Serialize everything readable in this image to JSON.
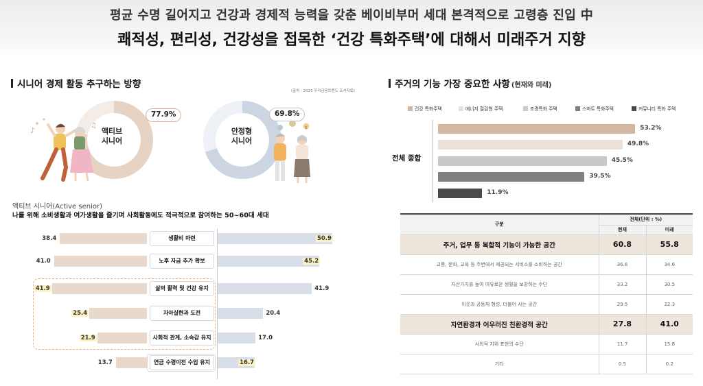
{
  "header": {
    "line1": "평균 수명 길어지고 건강과 경제적 능력을 갖춘 베이비부머 세대 본격적으로 고령층 진입 中",
    "line2": "쾌적성, 편리성, 건강성을 접목한 ‘건강 특화주택’에 대해서 미래주거 지향"
  },
  "left": {
    "section_title": "시니어 경제 활동 추구하는 방향",
    "source": "(출처 : 2025 우리금융트렌드 조사자료)",
    "donuts": [
      {
        "label_line1": "액티브",
        "label_line2": "시니어",
        "percent_text": "77.9%",
        "value": 77.9,
        "color": "#e7d3c4",
        "track": "#f4ece6"
      },
      {
        "label_line1": "안정형",
        "label_line2": "시니어",
        "percent_text": "69.8%",
        "value": 69.8,
        "color": "#cdd5e2",
        "track": "#eef1f6"
      }
    ],
    "active_title": "액티브 시니어(Active senior)",
    "active_desc": "나를 위해 소비생활과 여가생활을 즐기며 사회활동에도 적극적으로 참여하는 50~60대 세대"
  },
  "right": {
    "section_title": "주거의 기능 가장 중요한 사항",
    "section_sub": "(현재와 미래)",
    "total_label": "전체 종합",
    "table": {
      "header_col": "구분",
      "header_group": "전체(단위 : %)",
      "header_now": "현재",
      "header_future": "미래",
      "rows": [
        {
          "label": "주거, 업무 등 복합적 기능이 가능한 공간",
          "now": "60.8",
          "future": "55.8",
          "major": true
        },
        {
          "label": "교통, 문화, 교육 등 주변에서 제공되는 서비스를 소비하는 공간",
          "now": "36.6",
          "future": "34.6",
          "major": false
        },
        {
          "label": "자산가치를 높여 여유로운 생활을 보장하는 수단",
          "now": "33.2",
          "future": "30.5",
          "major": false
        },
        {
          "label": "이웃과 공동체 형성, 더불어 사는 공간",
          "now": "29.5",
          "future": "22.3",
          "major": false
        },
        {
          "label": "자연환경과 어우러진 친환경적 공간",
          "now": "27.8",
          "future": "41.0",
          "major": true
        },
        {
          "label": "사회적 지위 표현의 수단",
          "now": "11.7",
          "future": "15.8",
          "major": false
        },
        {
          "label": "기타",
          "now": "0.5",
          "future": "0.2",
          "major": false
        }
      ]
    }
  },
  "chart_data": [
    {
      "type": "bar",
      "orientation": "horizontal-diverging",
      "title": "",
      "categories": [
        "생활비 마련",
        "노후 자금 추가 확보",
        "삶의 활력 및 건강 유지",
        "자아실현과 도전",
        "사회적 관계, 소속감 유지",
        "연금 수령이전 수입 유지"
      ],
      "series": [
        {
          "name": "액티브 시니어",
          "values": [
            38.4,
            41.0,
            41.9,
            25.4,
            21.9,
            13.7
          ],
          "labels": [
            "38.4",
            "41.0",
            "41.9",
            "25.4",
            "21.9",
            "13.7"
          ],
          "color": "#e9d9cc"
        },
        {
          "name": "안정형 시니어",
          "values": [
            50.9,
            45.2,
            41.9,
            20.4,
            17.0,
            16.7
          ],
          "labels": [
            "50.9",
            "45.2",
            "41.9",
            "20.4",
            "17.0",
            "16.7"
          ],
          "color": "#d9dfe9"
        }
      ],
      "highlight_left": [
        false,
        false,
        true,
        true,
        true,
        false
      ],
      "highlight_right": [
        true,
        true,
        false,
        false,
        false,
        true
      ],
      "xlim": [
        0,
        55
      ]
    },
    {
      "type": "bar",
      "orientation": "horizontal",
      "title": "",
      "categories": [
        "건강 특화주택",
        "에너지 절감형 주택",
        "조경특화 주택",
        "스마트 특화주택",
        "커뮤니티 특화 주택"
      ],
      "values": [
        53.2,
        49.8,
        45.5,
        39.5,
        11.9
      ],
      "labels": [
        "53.2%",
        "49.8%",
        "45.5%",
        "39.5%",
        "11.9%"
      ],
      "colors": [
        "#d2b8a3",
        "#ece1d7",
        "#c9c9c9",
        "#808080",
        "#4a4a4a"
      ],
      "legend": "top",
      "xlim": [
        0,
        60
      ]
    }
  ]
}
